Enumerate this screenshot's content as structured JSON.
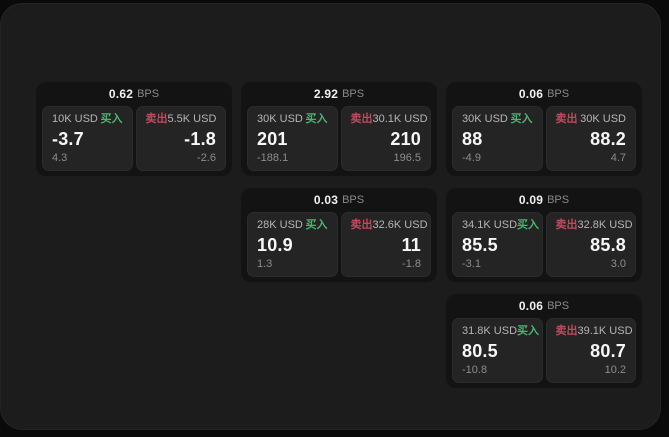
{
  "labels": {
    "buy": "买入",
    "sell": "卖出",
    "bps_unit": "BPS"
  },
  "colors": {
    "panel_bg": "#1c1c1c",
    "card_bg": "#131313",
    "tile_bg": "#242424",
    "buy_green": "#4db371",
    "sell_red": "#c2495d"
  },
  "cards": [
    {
      "col": 1,
      "row": 1,
      "bps": "0.62",
      "buy": {
        "size": "10K USD",
        "value": "-3.7",
        "change": "4.3"
      },
      "sell": {
        "size": "5.5K USD",
        "value": "-1.8",
        "change": "-2.6"
      }
    },
    {
      "col": 2,
      "row": 1,
      "bps": "2.92",
      "buy": {
        "size": "30K USD",
        "value": "201",
        "change": "-188.1"
      },
      "sell": {
        "size": "30.1K USD",
        "value": "210",
        "change": "196.5"
      }
    },
    {
      "col": 2,
      "row": 2,
      "bps": "0.03",
      "buy": {
        "size": "28K USD",
        "value": "10.9",
        "change": "1.3"
      },
      "sell": {
        "size": "32.6K USD",
        "value": "11",
        "change": "-1.8"
      }
    },
    {
      "col": 3,
      "row": 1,
      "bps": "0.06",
      "buy": {
        "size": "30K USD",
        "value": "88",
        "change": "-4.9"
      },
      "sell": {
        "size": "30K USD",
        "value": "88.2",
        "change": "4.7"
      }
    },
    {
      "col": 3,
      "row": 2,
      "bps": "0.09",
      "buy": {
        "size": "34.1K USD",
        "value": "85.5",
        "change": "-3.1"
      },
      "sell": {
        "size": "32.8K USD",
        "value": "85.8",
        "change": "3.0"
      }
    },
    {
      "col": 3,
      "row": 3,
      "bps": "0.06",
      "buy": {
        "size": "31.8K USD",
        "value": "80.5",
        "change": "-10.8"
      },
      "sell": {
        "size": "39.1K USD",
        "value": "80.7",
        "change": "10.2"
      }
    }
  ]
}
